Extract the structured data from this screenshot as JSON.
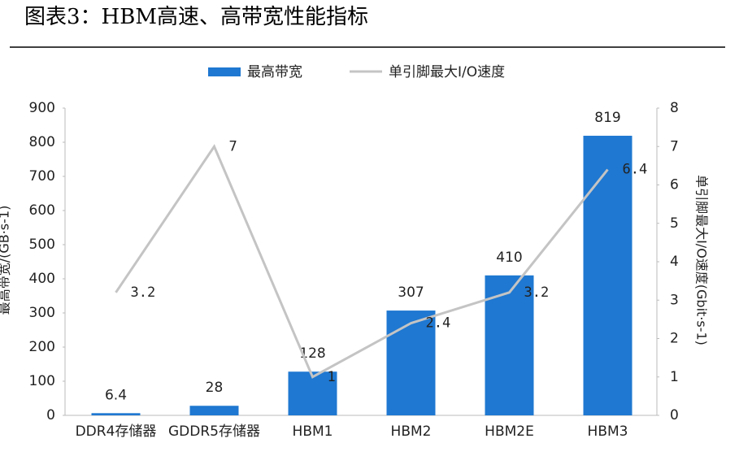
{
  "chart_data": {
    "type": "bar-line",
    "title": "图表3：HBM高速、高带宽性能指标",
    "y_label": "最高带宽/(GB·s-1)",
    "y2_label": "单引脚最大I/O速度(Gbit·s-1)",
    "categories": [
      "DDR4存储器",
      "GDDR5存储器",
      "HBM1",
      "HBM2",
      "HBM2E",
      "HBM3"
    ],
    "series": [
      {
        "name": "最高带宽",
        "color": "#1f78d1",
        "type": "bar",
        "values": [
          6.4,
          28,
          128,
          307,
          410,
          819
        ]
      },
      {
        "name": "单引脚最大I/O速度",
        "color": "#c4c4c4",
        "type": "line",
        "axis": "y2",
        "values": [
          3.2,
          7,
          1,
          2.4,
          3.2,
          6.4
        ]
      }
    ],
    "ylim": [
      0,
      900
    ],
    "yticks": [
      0,
      100,
      200,
      300,
      400,
      500,
      600,
      700,
      800,
      900
    ],
    "y2lim": [
      0,
      8
    ],
    "y2ticks": [
      0,
      1,
      2,
      3,
      4,
      5,
      6,
      7,
      8
    ],
    "legend": "top",
    "grid": false
  }
}
